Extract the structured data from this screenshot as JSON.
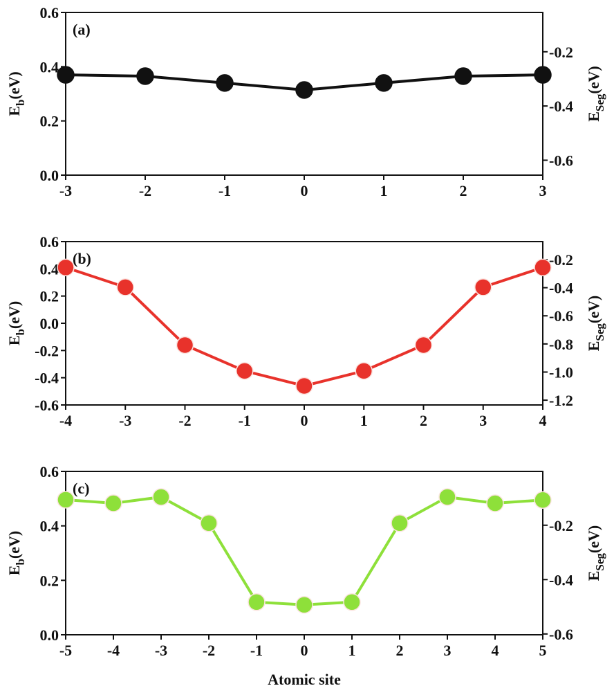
{
  "chart_data": [
    {
      "type": "line",
      "label": "(a)",
      "x": [
        -3,
        -2,
        -1,
        0,
        1,
        2,
        3
      ],
      "values": [
        0.37,
        0.365,
        0.34,
        0.314,
        0.34,
        0.365,
        0.37
      ],
      "color": "#111111",
      "xlim": [
        -3,
        3
      ],
      "xticks": [
        -3,
        -2,
        -1,
        0,
        1,
        2,
        3
      ],
      "ylim": [
        0,
        0.6
      ],
      "yticks": [
        {
          "value": 0,
          "label": "0.0"
        },
        0.2,
        0.4,
        0.6
      ],
      "y2lim": [
        -0.655,
        -0.055
      ],
      "y2ticks": [
        -0.2,
        -0.4,
        -0.6
      ],
      "ylabel": [
        "E",
        "b",
        "(eV)"
      ],
      "y2label": [
        "E",
        "Seg",
        "(eV)"
      ]
    },
    {
      "type": "line",
      "label": "(b)",
      "x": [
        -4,
        -3,
        -2,
        -1,
        0,
        1,
        2,
        3,
        4
      ],
      "values": [
        0.41,
        0.265,
        -0.16,
        -0.35,
        -0.46,
        -0.35,
        -0.16,
        0.265,
        0.41
      ],
      "color": "#e8322b",
      "xlim": [
        -4,
        4
      ],
      "xticks": [
        -4,
        -3,
        -2,
        -1,
        0,
        1,
        2,
        3,
        4
      ],
      "ylim": [
        -0.6,
        0.6
      ],
      "yticks": [
        -0.6,
        -0.4,
        -0.2,
        {
          "value": 0,
          "label": "0.0"
        },
        0.2,
        0.4,
        0.6
      ],
      "y2lim": [
        -1.234,
        -0.072
      ],
      "y2ticks": [
        -0.2,
        -0.4,
        -0.6,
        -0.8,
        {
          "value": -1,
          "label": "-1.0"
        },
        -1.2
      ],
      "ylabel": [
        "E",
        "b",
        "(eV)"
      ],
      "y2label": [
        "E",
        "Seg",
        "(eV)"
      ]
    },
    {
      "type": "line",
      "label": "(c)",
      "x": [
        -5,
        -4,
        -3,
        -2,
        -1,
        0,
        1,
        2,
        3,
        4,
        5
      ],
      "values": [
        0.496,
        0.483,
        0.506,
        0.41,
        0.12,
        0.11,
        0.12,
        0.41,
        0.506,
        0.483,
        0.495
      ],
      "color": "#8ee03a",
      "xlim": [
        -5,
        5
      ],
      "xticks": [
        -5,
        -4,
        -3,
        -2,
        -1,
        0,
        1,
        2,
        3,
        4,
        5
      ],
      "ylim": [
        0,
        0.6
      ],
      "yticks": [
        {
          "value": 0,
          "label": "0.0"
        },
        0.2,
        0.4,
        0.6
      ],
      "y2lim": [
        -0.603,
        -0.002
      ],
      "y2ticks": [
        -0.2,
        -0.4,
        -0.6
      ],
      "ylabel": [
        "E",
        "b",
        "(eV)"
      ],
      "y2label": [
        "E",
        "Seg",
        "(eV)"
      ],
      "xlabel": "Atomic site"
    }
  ]
}
